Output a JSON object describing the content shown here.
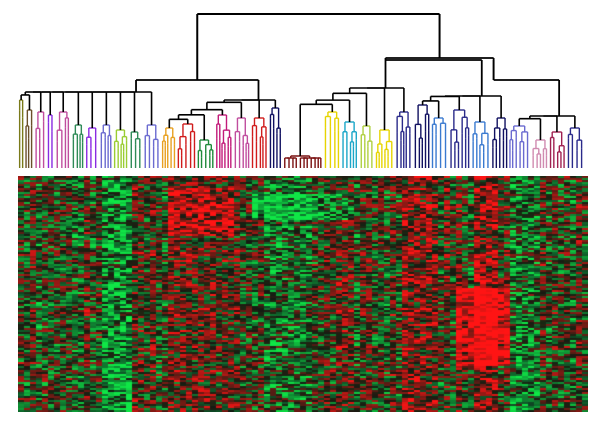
{
  "figure": {
    "kind": "hierarchical-clustering-heatmap",
    "background": "#ffffff",
    "tree_color": "#000000",
    "cluster_colors": [
      "#7a7a1a",
      "#6b4f2a",
      "#c04d9e",
      "#8a2be2",
      "#2e8b57",
      "#9acd32",
      "#e8a020",
      "#d01c1c",
      "#1f8a3a",
      "#c21a7a",
      "#b0d040",
      "#7a1010",
      "#1aa6c8",
      "#3a7ad0",
      "#e6d400",
      "#2a2a8a",
      "#101060",
      "#6a6ad0",
      "#d08ab0",
      "#a02050"
    ],
    "heatmap_colors": {
      "up": "#ff2020",
      "down": "#22dd55",
      "neutral": "#000000"
    },
    "heatmap_columns": 95,
    "heatmap_rows": 118
  }
}
